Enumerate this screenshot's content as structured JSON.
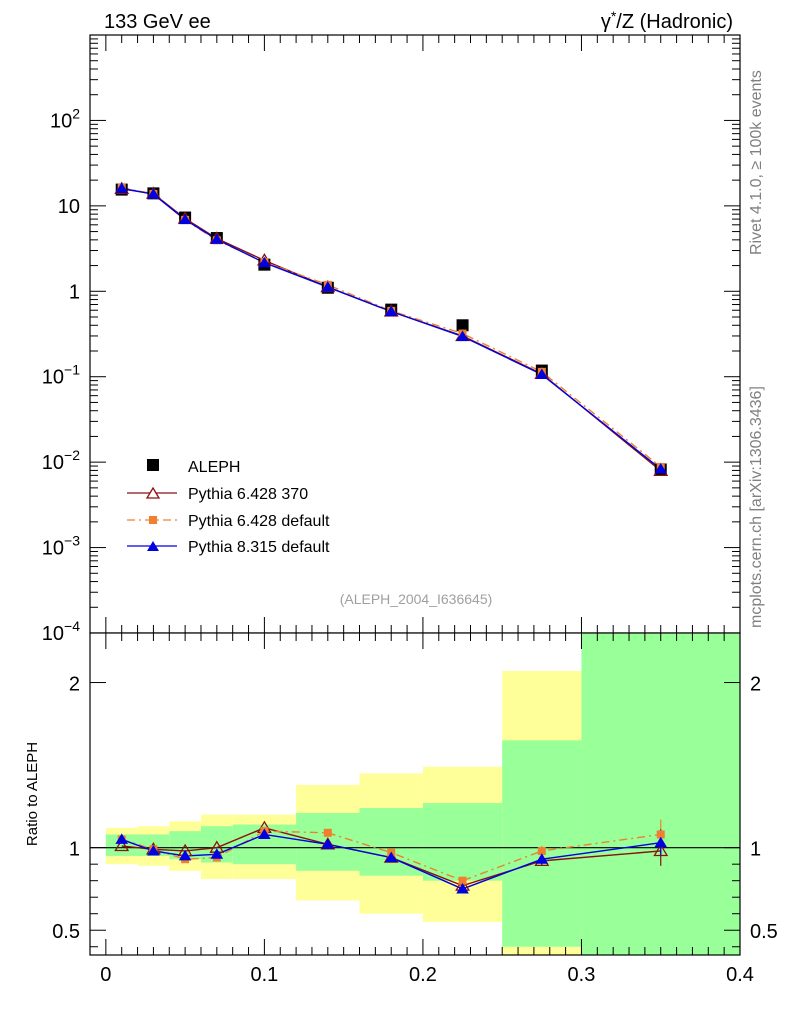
{
  "header": {
    "left": "133 GeV ee",
    "right_prefix": "γ",
    "right_sup": "*",
    "right_suffix": "/Z (Hadronic)"
  },
  "side_text": {
    "rivet": "Rivet 4.1.0, ≥ 100k events",
    "mcplots": "mcplots.cern.ch [arXiv:1306.3436]"
  },
  "analysis_label": "(ALEPH_2004_I636645)",
  "colors": {
    "data": "#000000",
    "pythia6_370": "#8b1010",
    "pythia6_default": "#f08030",
    "pythia8": "#0000e0",
    "band_inner": "#99ff99",
    "band_outer": "#ffff99"
  },
  "chart_data": [
    {
      "type": "line",
      "title": "133 GeV ee  γ*/Z (Hadronic)",
      "yscale": "log",
      "xlim": [
        -0.01,
        0.4
      ],
      "ylim": [
        0.0001,
        1000
      ],
      "ytick_labels": [
        {
          "value": 0.0001,
          "base": "10",
          "exp": "−4"
        },
        {
          "value": 0.001,
          "base": "10",
          "exp": "−3"
        },
        {
          "value": 0.01,
          "base": "10",
          "exp": "−2"
        },
        {
          "value": 0.1,
          "base": "10",
          "exp": "−1"
        },
        {
          "value": 1,
          "base": "1",
          "exp": ""
        },
        {
          "value": 10,
          "base": "10",
          "exp": ""
        },
        {
          "value": 100,
          "base": "10",
          "exp": "2"
        }
      ],
      "x": [
        0.01,
        0.03,
        0.05,
        0.07,
        0.1,
        0.14,
        0.18,
        0.225,
        0.275,
        0.35
      ],
      "series": [
        {
          "name": "ALEPH",
          "key": "data",
          "marker": "square",
          "values": [
            15.5,
            14.0,
            7.3,
            4.2,
            2.05,
            1.1,
            0.61,
            0.4,
            0.118,
            0.0082
          ]
        },
        {
          "name": "Pythia 6.428 370",
          "key": "pythia6_370",
          "marker": "triangle-open",
          "dash": "",
          "values": [
            15.8,
            13.9,
            7.1,
            4.15,
            2.3,
            1.12,
            0.58,
            0.3,
            0.108,
            0.0079
          ]
        },
        {
          "name": "Pythia 6.428 default",
          "key": "pythia6_default",
          "marker": "square-small",
          "dash": "8 4 2 4",
          "values": [
            16.3,
            13.8,
            6.85,
            3.95,
            2.2,
            1.19,
            0.59,
            0.32,
            0.114,
            0.0088
          ]
        },
        {
          "name": "Pythia 8.315 default",
          "key": "pythia8",
          "marker": "triangle",
          "dash": "",
          "values": [
            16.0,
            13.7,
            6.9,
            4.05,
            2.16,
            1.12,
            0.58,
            0.296,
            0.106,
            0.0083
          ]
        }
      ]
    },
    {
      "type": "line",
      "ylabel": "Ratio to ALEPH",
      "xlim": [
        -0.01,
        0.4
      ],
      "ylim": [
        0.35,
        2.3
      ],
      "xticks": [
        0,
        0.1,
        0.2,
        0.3,
        0.4
      ],
      "xtick_labels": [
        "0",
        "0.1",
        "0.2",
        "0.3",
        "0.4"
      ],
      "yticks": [
        0.5,
        1,
        2
      ],
      "ytick_labels": [
        "0.5",
        "1",
        "2"
      ],
      "bands": [
        {
          "x0": 0.0,
          "x1": 0.02,
          "inner": [
            0.95,
            1.08
          ],
          "outer": [
            0.9,
            1.12
          ]
        },
        {
          "x0": 0.02,
          "x1": 0.04,
          "inner": [
            0.95,
            1.08
          ],
          "outer": [
            0.89,
            1.13
          ]
        },
        {
          "x0": 0.04,
          "x1": 0.06,
          "inner": [
            0.93,
            1.1
          ],
          "outer": [
            0.86,
            1.16
          ]
        },
        {
          "x0": 0.06,
          "x1": 0.08,
          "inner": [
            0.91,
            1.13
          ],
          "outer": [
            0.81,
            1.2
          ]
        },
        {
          "x0": 0.08,
          "x1": 0.12,
          "inner": [
            0.9,
            1.14
          ],
          "outer": [
            0.81,
            1.2
          ]
        },
        {
          "x0": 0.12,
          "x1": 0.16,
          "inner": [
            0.86,
            1.21
          ],
          "outer": [
            0.68,
            1.38
          ]
        },
        {
          "x0": 0.16,
          "x1": 0.2,
          "inner": [
            0.83,
            1.24
          ],
          "outer": [
            0.6,
            1.45
          ]
        },
        {
          "x0": 0.2,
          "x1": 0.25,
          "inner": [
            0.8,
            1.27
          ],
          "outer": [
            0.55,
            1.49
          ]
        },
        {
          "x0": 0.25,
          "x1": 0.3,
          "inner": [
            0.4,
            1.65
          ],
          "outer": [
            0.35,
            2.07
          ]
        },
        {
          "x0": 0.3,
          "x1": 0.4,
          "inner": [
            0.35,
            2.3
          ],
          "outer": [
            0.35,
            2.3
          ]
        }
      ],
      "series": [
        {
          "name": "Pythia 6.428 370",
          "key": "pythia6_370",
          "marker": "triangle-open",
          "values": [
            1.01,
            0.99,
            0.98,
            1.0,
            1.12,
            1.02,
            0.94,
            0.77,
            0.92,
            0.98
          ],
          "err": [
            0,
            0,
            0,
            0,
            0,
            0,
            0,
            0,
            0.03,
            0.09
          ]
        },
        {
          "name": "Pythia 6.428 default",
          "key": "pythia6_default",
          "marker": "square-small",
          "values": [
            1.05,
            0.99,
            0.93,
            0.94,
            1.1,
            1.09,
            0.97,
            0.8,
            0.98,
            1.08
          ],
          "err": [
            0,
            0,
            0,
            0,
            0,
            0,
            0,
            0,
            0.03,
            0.09
          ]
        },
        {
          "name": "Pythia 8.315 default",
          "key": "pythia8",
          "marker": "triangle",
          "values": [
            1.05,
            0.98,
            0.95,
            0.96,
            1.08,
            1.02,
            0.94,
            0.75,
            0.93,
            1.03
          ],
          "err": [
            0,
            0,
            0,
            0,
            0,
            0,
            0,
            0,
            0.03,
            0.08
          ]
        }
      ]
    }
  ]
}
